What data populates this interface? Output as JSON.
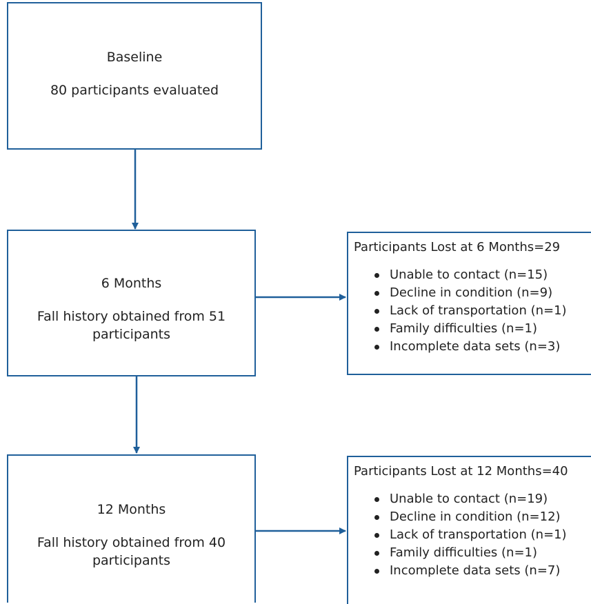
{
  "stages": [
    {
      "title": "Baseline",
      "description": "80 participants evaluated"
    },
    {
      "title": "6 Months",
      "description": "Fall history obtained from 51 participants"
    },
    {
      "title": "12 Months",
      "description": "Fall history obtained from 40 participants"
    }
  ],
  "losses": [
    {
      "title": "Participants Lost at 6 Months=29",
      "items": [
        "Unable to contact (n=15)",
        "Decline in condition (n=9)",
        "Lack of transportation (n=1)",
        "Family difficulties (n=1)",
        "Incomplete data sets (n=3)"
      ]
    },
    {
      "title": "Participants Lost at 12 Months=40",
      "items": [
        "Unable to contact (n=19)",
        "Decline in condition (n=12)",
        "Lack of transportation (n=1)",
        "Family difficulties (n=1)",
        "Incomplete data sets (n=7)"
      ]
    }
  ],
  "colors": {
    "line": "#1f5f9a",
    "text": "#222222",
    "background": "#ffffff"
  }
}
